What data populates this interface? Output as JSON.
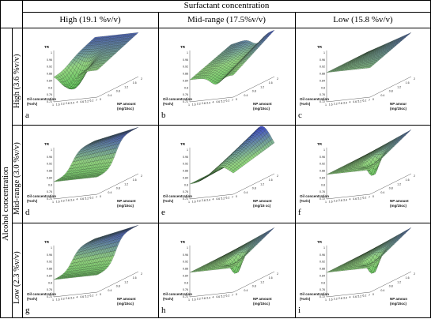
{
  "header": {
    "surfactant_title": "Surfactant  concentration",
    "columns": [
      "High (19.1 %v/v)",
      "Mid-range (17.5%v/v)",
      "Low (15.8 %v/v)"
    ]
  },
  "side": {
    "alcohol_title": "Alcohol concentration",
    "rows": [
      "High (3.6 %v/v)",
      "Mid-range (3.0 %v/v)",
      "Low (2.3 %v/v)"
    ]
  },
  "panels": [
    {
      "letter": "a",
      "z": "TR",
      "x": "Oil concentration\n(%v/v)",
      "y": "NP amount\n(mg/15cc)",
      "shape": "valley"
    },
    {
      "letter": "b",
      "z": "TR",
      "x": "Oil concentration\n(%v/v)",
      "y": "NP amount\n(mg/15cc)",
      "shape": "ridge"
    },
    {
      "letter": "c",
      "z": "TR",
      "x": "Oil concentration\n(%v/v)",
      "y": "NP amour\n(mg/15cc)",
      "shape": "flat"
    },
    {
      "letter": "d",
      "z": "TR",
      "x": "Oil concentration\n(%v/v)",
      "y": "NP amount\n(mg/15cc)",
      "shape": "step"
    },
    {
      "letter": "e",
      "z": "TR",
      "x": "Oil concentration\n(%v/v)",
      "y": "NP amount\n(mg/15 cc)",
      "shape": "peak"
    },
    {
      "letter": "f",
      "z": "TR",
      "x": "Oil concentration\n(%v/v)",
      "y": "NP amount\n(mg/15cc)",
      "shape": "dip"
    },
    {
      "letter": "g",
      "z": "TR",
      "x": "Oil concentration\n(%v/v)",
      "y": "NP amount\n(mg/15cc)",
      "shape": "step"
    },
    {
      "letter": "h",
      "z": "TR",
      "x": "Oil concentration\n(%v/v)",
      "y": "NP amount\n(mg/15cc)",
      "shape": "dip"
    },
    {
      "letter": "i",
      "z": "TR",
      "x": "Oil concentration\n(%v/v)",
      "y": "NP amoun\n(mg/15cc)",
      "shape": "dip"
    }
  ],
  "z_ticks": [
    "1",
    "0.96",
    "0.92",
    "0.88",
    "0.84",
    "0.8",
    "0.76",
    "0.72"
  ],
  "oil_ticks": [
    "1",
    "1.6",
    "2.2",
    "2.8",
    "3.4",
    "4",
    "4.6",
    "5.2",
    "6.2",
    "7"
  ],
  "np_ticks": [
    "0",
    "0.4",
    "0.8",
    "1.2",
    "1.6",
    "2"
  ],
  "colors": {
    "low": "#3fb541",
    "mid": "#8fd27a",
    "high": "#2e3cc8",
    "grid": "#1a1a1a"
  }
}
